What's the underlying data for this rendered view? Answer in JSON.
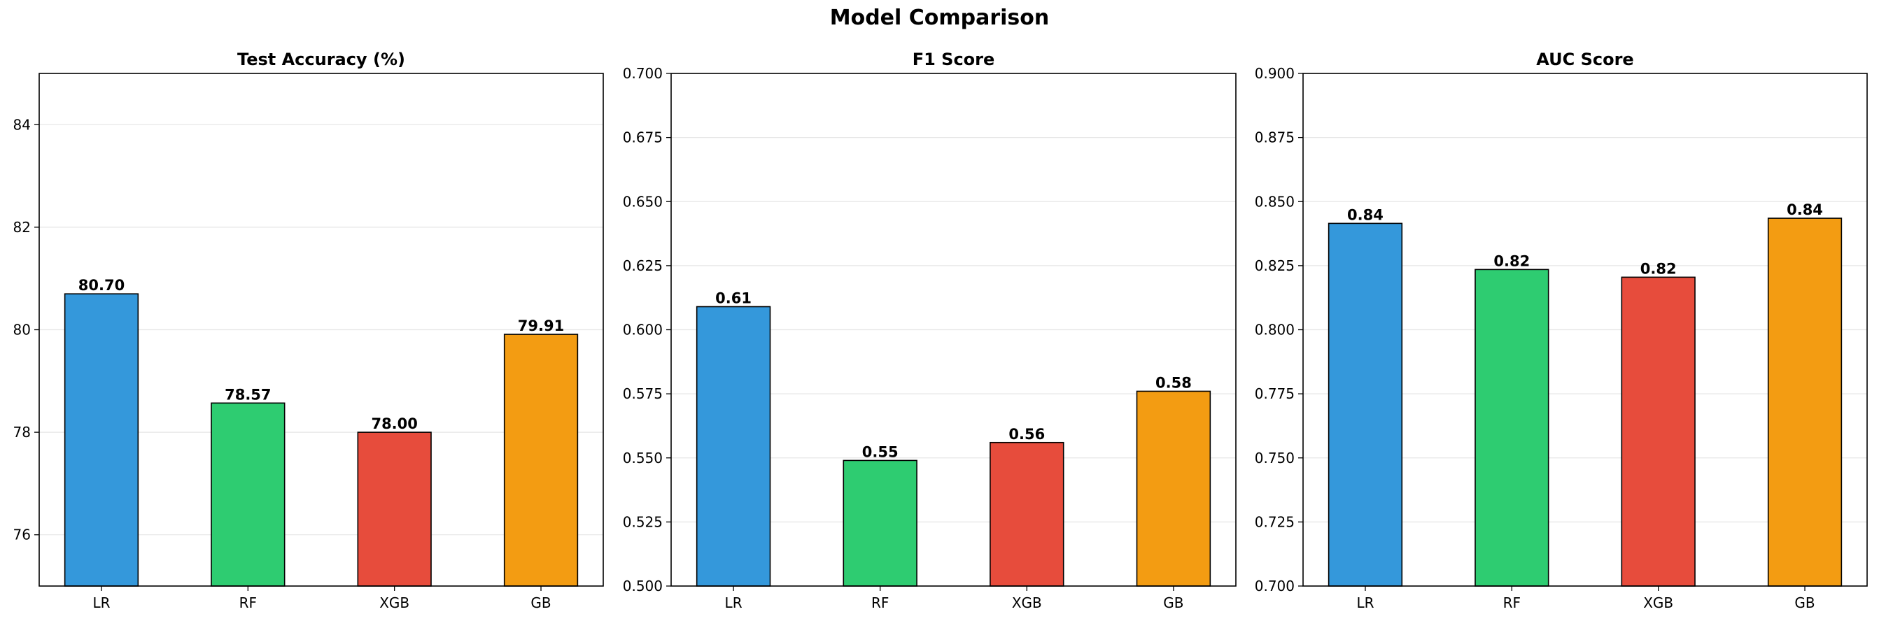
{
  "figure": {
    "title": "Model Comparison"
  },
  "chart_data": [
    {
      "type": "bar",
      "title": "Test Accuracy (%)",
      "categories": [
        "LR",
        "RF",
        "XGB",
        "GB"
      ],
      "values": [
        80.7,
        78.57,
        78.0,
        79.91
      ],
      "value_labels": [
        "80.70",
        "78.57",
        "78.00",
        "79.91"
      ],
      "colors": [
        "#3498db",
        "#2ecc71",
        "#e74c3c",
        "#f39c12"
      ],
      "ylim": [
        75,
        85
      ],
      "yticks": [
        76,
        78,
        80,
        82,
        84
      ],
      "ytick_labels": [
        "76",
        "78",
        "80",
        "82",
        "84"
      ],
      "xlabel": "",
      "ylabel": "",
      "grid": "y"
    },
    {
      "type": "bar",
      "title": "F1 Score",
      "categories": [
        "LR",
        "RF",
        "XGB",
        "GB"
      ],
      "values": [
        0.609,
        0.549,
        0.556,
        0.576
      ],
      "value_labels": [
        "0.61",
        "0.55",
        "0.56",
        "0.58"
      ],
      "colors": [
        "#3498db",
        "#2ecc71",
        "#e74c3c",
        "#f39c12"
      ],
      "ylim": [
        0.5,
        0.7
      ],
      "yticks": [
        0.5,
        0.525,
        0.55,
        0.575,
        0.6,
        0.625,
        0.65,
        0.675,
        0.7
      ],
      "ytick_labels": [
        "0.500",
        "0.525",
        "0.550",
        "0.575",
        "0.600",
        "0.625",
        "0.650",
        "0.675",
        "0.700"
      ],
      "xlabel": "",
      "ylabel": "",
      "grid": "y"
    },
    {
      "type": "bar",
      "title": "AUC Score",
      "categories": [
        "LR",
        "RF",
        "XGB",
        "GB"
      ],
      "values": [
        0.8415,
        0.8235,
        0.8205,
        0.8435
      ],
      "value_labels": [
        "0.84",
        "0.82",
        "0.82",
        "0.84"
      ],
      "colors": [
        "#3498db",
        "#2ecc71",
        "#e74c3c",
        "#f39c12"
      ],
      "ylim": [
        0.7,
        0.9
      ],
      "yticks": [
        0.7,
        0.725,
        0.75,
        0.775,
        0.8,
        0.825,
        0.85,
        0.875,
        0.9
      ],
      "ytick_labels": [
        "0.700",
        "0.725",
        "0.750",
        "0.775",
        "0.800",
        "0.825",
        "0.850",
        "0.875",
        "0.900"
      ],
      "xlabel": "",
      "ylabel": "",
      "grid": "y"
    }
  ]
}
